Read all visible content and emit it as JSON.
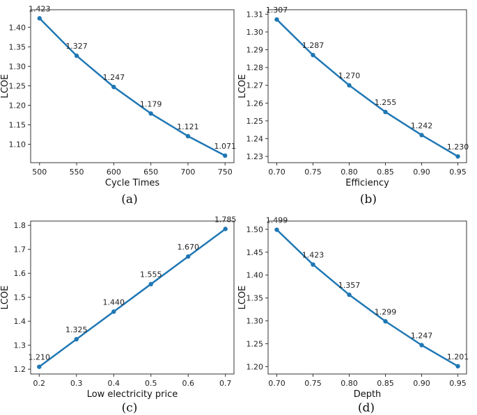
{
  "chart_data": [
    {
      "id": "a",
      "type": "line",
      "caption": "(a)",
      "xlabel": "Cycle Times",
      "ylabel": "LCOE",
      "xlim": [
        488,
        762
      ],
      "ylim": [
        1.053,
        1.445
      ],
      "xticks": [
        500,
        550,
        600,
        650,
        700,
        750
      ],
      "xtick_labels": [
        "500",
        "550",
        "600",
        "650",
        "700",
        "750"
      ],
      "yticks": [
        1.1,
        1.15,
        1.2,
        1.25,
        1.3,
        1.35,
        1.4
      ],
      "ytick_labels": [
        "1.10",
        "1.15",
        "1.20",
        "1.25",
        "1.30",
        "1.35",
        "1.40"
      ],
      "x": [
        500,
        550,
        600,
        650,
        700,
        750
      ],
      "values": [
        1.423,
        1.327,
        1.247,
        1.179,
        1.121,
        1.071
      ],
      "value_labels": [
        "1.423",
        "1.327",
        "1.247",
        "1.179",
        "1.121",
        "1.071"
      ],
      "grid": false,
      "color": "#1f77b4"
    },
    {
      "id": "b",
      "type": "line",
      "caption": "(b)",
      "xlabel": "Efficiency",
      "ylabel": "LCOE",
      "xlim": [
        0.688,
        0.962
      ],
      "ylim": [
        1.2265,
        1.3125
      ],
      "xticks": [
        0.7,
        0.75,
        0.8,
        0.85,
        0.9,
        0.95
      ],
      "xtick_labels": [
        "0.70",
        "0.75",
        "0.80",
        "0.85",
        "0.90",
        "0.95"
      ],
      "yticks": [
        1.23,
        1.24,
        1.25,
        1.26,
        1.27,
        1.28,
        1.29,
        1.3,
        1.31
      ],
      "ytick_labels": [
        "1.23",
        "1.24",
        "1.25",
        "1.26",
        "1.27",
        "1.28",
        "1.29",
        "1.30",
        "1.31"
      ],
      "x": [
        0.7,
        0.75,
        0.8,
        0.85,
        0.9,
        0.95
      ],
      "values": [
        1.307,
        1.287,
        1.27,
        1.255,
        1.242,
        1.23
      ],
      "value_labels": [
        "1.307",
        "1.287",
        "1.270",
        "1.255",
        "1.242",
        "1.230"
      ],
      "grid": false,
      "color": "#1f77b4"
    },
    {
      "id": "c",
      "type": "line",
      "caption": "(c)",
      "xlabel": "Low electricity price",
      "ylabel": "LCOE",
      "xlim": [
        0.177,
        0.723
      ],
      "ylim": [
        1.18,
        1.818
      ],
      "xticks": [
        0.2,
        0.3,
        0.4,
        0.5,
        0.6,
        0.7
      ],
      "xtick_labels": [
        "0.2",
        "0.3",
        "0.4",
        "0.5",
        "0.6",
        "0.7"
      ],
      "yticks": [
        1.2,
        1.3,
        1.4,
        1.5,
        1.6,
        1.7,
        1.8
      ],
      "ytick_labels": [
        "1.2",
        "1.3",
        "1.4",
        "1.5",
        "1.6",
        "1.7",
        "1.8"
      ],
      "x": [
        0.2,
        0.3,
        0.4,
        0.5,
        0.6,
        0.7
      ],
      "values": [
        1.21,
        1.325,
        1.44,
        1.555,
        1.67,
        1.785
      ],
      "value_labels": [
        "1.210",
        "1.325",
        "1.440",
        "1.555",
        "1.670",
        "1.785"
      ],
      "grid": false,
      "color": "#1f77b4"
    },
    {
      "id": "d",
      "type": "line",
      "caption": "(d)",
      "xlabel": "Depth",
      "ylabel": "LCOE",
      "xlim": [
        0.688,
        0.962
      ],
      "ylim": [
        1.184,
        1.518
      ],
      "xticks": [
        0.7,
        0.75,
        0.8,
        0.85,
        0.9,
        0.95
      ],
      "xtick_labels": [
        "0.70",
        "0.75",
        "0.80",
        "0.85",
        "0.90",
        "0.95"
      ],
      "yticks": [
        1.2,
        1.25,
        1.3,
        1.35,
        1.4,
        1.45,
        1.5
      ],
      "ytick_labels": [
        "1.20",
        "1.25",
        "1.30",
        "1.35",
        "1.40",
        "1.45",
        "1.50"
      ],
      "x": [
        0.7,
        0.75,
        0.8,
        0.85,
        0.9,
        0.95
      ],
      "values": [
        1.499,
        1.423,
        1.357,
        1.299,
        1.247,
        1.201
      ],
      "value_labels": [
        "1.499",
        "1.423",
        "1.357",
        "1.299",
        "1.247",
        "1.201"
      ],
      "grid": false,
      "color": "#1f77b4"
    }
  ]
}
